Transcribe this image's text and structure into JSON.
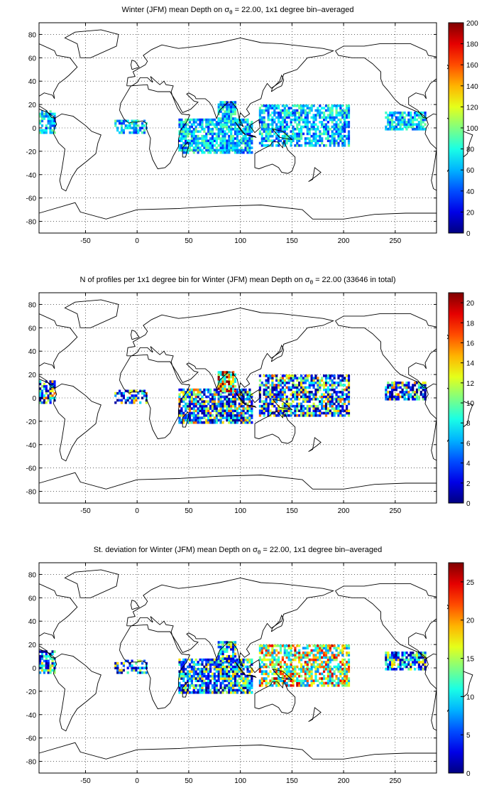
{
  "panels": [
    {
      "title_pre": "Winter (JFM) mean Depth on σ",
      "title_sub": "θ",
      "title_post": " = 22.00, 1x1 degree bin–averaged",
      "xticks": [
        "-50",
        "0",
        "50",
        "100",
        "150",
        "200",
        "250"
      ],
      "yticks": [
        "80",
        "60",
        "40",
        "20",
        "0",
        "-20",
        "-40",
        "-60",
        "-80"
      ],
      "colorbar_ticks": [
        "200",
        "180",
        "160",
        "140",
        "120",
        "100",
        "80",
        "60",
        "40",
        "20",
        "0"
      ],
      "colorbar_range": [
        0,
        200
      ],
      "colormap": "jet"
    },
    {
      "title_pre": "N of profiles per 1x1 degree bin for Winter (JFM) mean Depth on σ",
      "title_sub": "θ",
      "title_post": " = 22.00 (33646 in total)",
      "xticks": [
        "-50",
        "0",
        "50",
        "100",
        "150",
        "200",
        "250"
      ],
      "yticks": [
        "80",
        "60",
        "40",
        "20",
        "0",
        "-20",
        "-40",
        "-60",
        "-80"
      ],
      "colorbar_ticks": [
        "20",
        "18",
        "16",
        "14",
        "12",
        "10",
        "8",
        "6",
        "4",
        "2",
        "0"
      ],
      "colorbar_range": [
        0,
        21
      ],
      "colormap": "jet"
    },
    {
      "title_pre": "St. deviation for Winter (JFM) mean Depth on σ",
      "title_sub": "θ",
      "title_post": " = 22.00, 1x1 degree bin–averaged",
      "xticks": [
        "-50",
        "0",
        "50",
        "100",
        "150",
        "200",
        "250"
      ],
      "yticks": [
        "80",
        "60",
        "40",
        "20",
        "0",
        "-20",
        "-40",
        "-60",
        "-80"
      ],
      "colorbar_ticks": [
        "25",
        "20",
        "15",
        "10",
        "5",
        "0"
      ],
      "colorbar_range": [
        0,
        27.5
      ],
      "colormap": "jet"
    }
  ]
}
